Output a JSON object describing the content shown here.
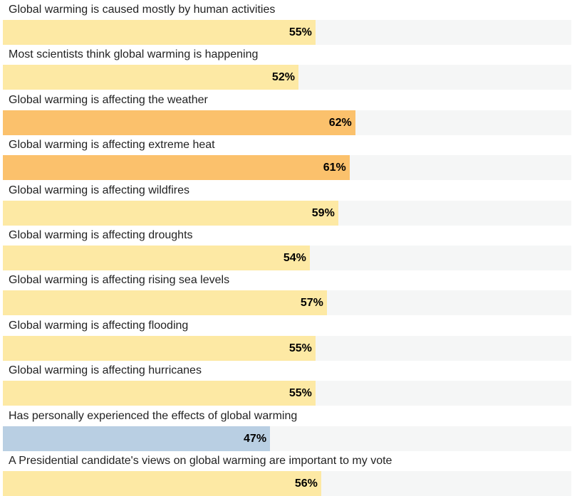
{
  "chart_data": {
    "type": "bar",
    "orientation": "horizontal",
    "xlim": [
      0,
      100
    ],
    "value_suffix": "%",
    "categories": [
      "Global warming is caused mostly by human activities",
      "Most scientists think global warming is happening",
      "Global warming is affecting the weather",
      "Global warming is affecting extreme heat",
      "Global warming is affecting wildfires",
      "Global warming is affecting droughts",
      "Global warming is affecting rising sea levels",
      "Global warming is affecting flooding",
      "Global warming is affecting hurricanes",
      "Has personally experienced the effects of global warming",
      "A Presidential candidate's views on global warming are important to my vote"
    ],
    "values": [
      55,
      52,
      62,
      61,
      59,
      54,
      57,
      55,
      55,
      47,
      56
    ],
    "labels": [
      "55%",
      "52%",
      "62%",
      "61%",
      "59%",
      "54%",
      "57%",
      "55%",
      "55%",
      "47%",
      "56%"
    ],
    "colors": [
      "#fde9a4",
      "#fde9a4",
      "#fbc16c",
      "#fbc16c",
      "#fde9a4",
      "#fde9a4",
      "#fde9a4",
      "#fde9a4",
      "#fde9a4",
      "#b9cfe3",
      "#fde9a4"
    ],
    "track_color": "#f5f6f6",
    "grid": false,
    "legend": "none"
  }
}
